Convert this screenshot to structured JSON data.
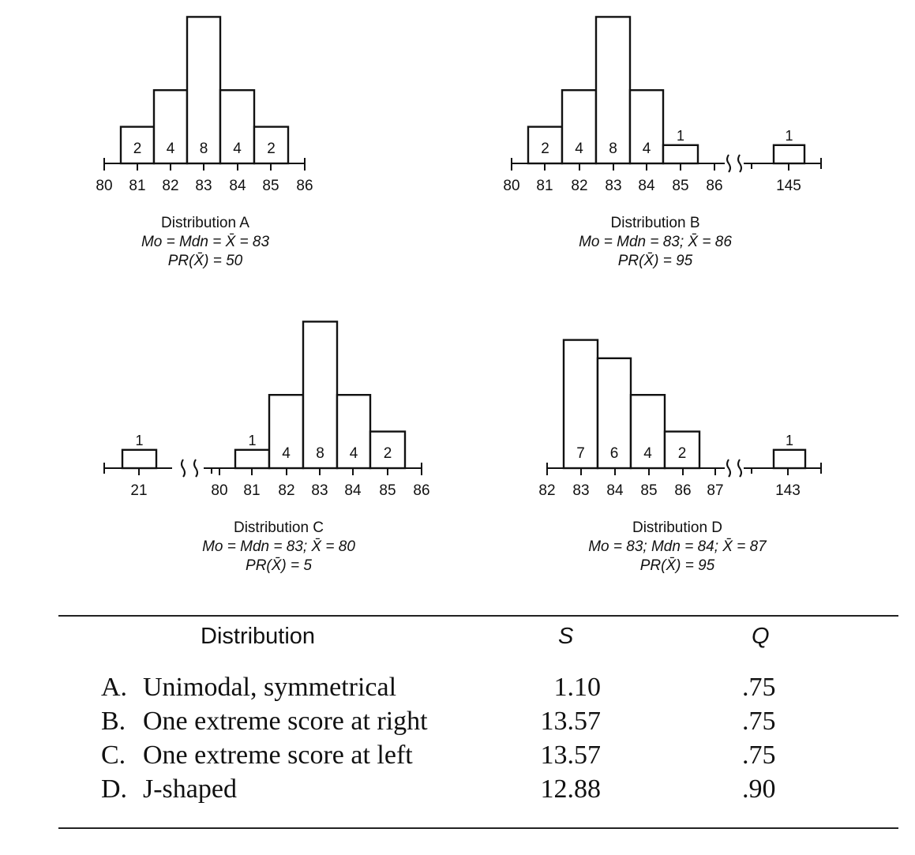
{
  "chart_data": [
    {
      "type": "bar",
      "title": "Distribution A",
      "stats": [
        "Mo = Mdn = X̄ = 83",
        "PR(X̄) = 50"
      ],
      "x_ticks": [
        "80",
        "81",
        "82",
        "83",
        "84",
        "85",
        "86"
      ],
      "categories": [
        "81",
        "82",
        "83",
        "84",
        "85"
      ],
      "values": [
        2,
        4,
        8,
        4,
        2
      ],
      "value_labels": [
        "2",
        "4",
        "8",
        "4",
        "2"
      ]
    },
    {
      "type": "bar",
      "title": "Distribution B",
      "stats": [
        "Mo = Mdn = 83; X̄ = 86",
        "PR(X̄) = 95"
      ],
      "x_ticks": [
        "80",
        "81",
        "82",
        "83",
        "84",
        "85",
        "86",
        "145"
      ],
      "categories": [
        "81",
        "82",
        "83",
        "84",
        "85",
        "145"
      ],
      "values": [
        2,
        4,
        8,
        4,
        1,
        1
      ],
      "value_labels": [
        "2",
        "4",
        "8",
        "4",
        "1",
        "1"
      ],
      "axis_break": "between 86 and 145"
    },
    {
      "type": "bar",
      "title": "Distribution C",
      "stats": [
        "Mo = Mdn = 83; X̄ = 80",
        "PR(X̄) = 5"
      ],
      "x_ticks": [
        "21",
        "80",
        "81",
        "82",
        "83",
        "84",
        "85",
        "86"
      ],
      "categories": [
        "21",
        "81",
        "82",
        "83",
        "84",
        "85"
      ],
      "values": [
        1,
        1,
        4,
        8,
        4,
        2
      ],
      "value_labels": [
        "1",
        "1",
        "4",
        "8",
        "4",
        "2"
      ],
      "axis_break": "between 21 and 80"
    },
    {
      "type": "bar",
      "title": "Distribution D",
      "stats": [
        "Mo = 83; Mdn = 84; X̄ = 87",
        "PR(X̄) = 95"
      ],
      "x_ticks": [
        "82",
        "83",
        "84",
        "85",
        "86",
        "87",
        "143"
      ],
      "categories": [
        "83",
        "84",
        "85",
        "86",
        "143"
      ],
      "values": [
        7,
        6,
        4,
        2,
        1
      ],
      "value_labels": [
        "7",
        "6",
        "4",
        "2",
        "1"
      ],
      "axis_break": "between 87 and 143"
    }
  ],
  "table": {
    "headers": [
      "Distribution",
      "S",
      "Q"
    ],
    "rows": [
      {
        "label": "A.",
        "name": "Unimodal, symmetrical",
        "s": "1.10",
        "q": ".75"
      },
      {
        "label": "B.",
        "name": "One extreme score at right",
        "s": "13.57",
        "q": ".75"
      },
      {
        "label": "C.",
        "name": "One extreme score at left",
        "s": "13.57",
        "q": ".75"
      },
      {
        "label": "D.",
        "name": "J-shaped",
        "s": "12.88",
        "q": ".90"
      }
    ]
  }
}
